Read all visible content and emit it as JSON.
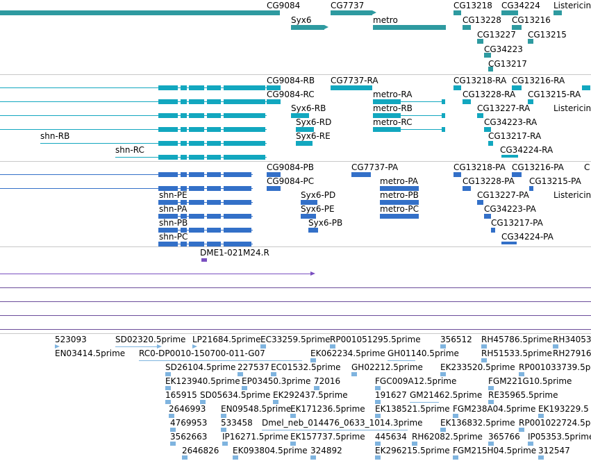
{
  "colors": {
    "gene": "#2e9aa0",
    "mrna": "#12a7bf",
    "protein": "#3370c8",
    "clone": "#7a4fc0",
    "est": "#7fb4df",
    "trace": "#6b4c9a"
  },
  "gene_track": {
    "labels": [
      "CG9084",
      "CG7737",
      "CG13218",
      "CG34224",
      "Listericin",
      "Syx6",
      "metro",
      "CG13228",
      "CG13216",
      "CG13227",
      "CG13215",
      "CG34223",
      "CG13217"
    ]
  },
  "mrna_track": {
    "labels": [
      "CG9084-RB",
      "CG7737-RA",
      "CG13218-RA",
      "CG13216-RA",
      "CG9084-RC",
      "metro-RA",
      "CG13228-RA",
      "CG13215-RA",
      "Syx6-RB",
      "metro-RB",
      "CG13227-RA",
      "Listericin-",
      "Syx6-RD",
      "metro-RC",
      "CG34223-RA",
      "Syx6-RE",
      "CG13217-RA",
      "shn-RB",
      "shn-RC",
      "CG34224-RA"
    ]
  },
  "protein_track": {
    "labels": [
      "CG9084-PB",
      "CG7737-PA",
      "CG13218-PA",
      "CG13216-PA",
      "C",
      "CG9084-PC",
      "metro-PA",
      "CG13228-PA",
      "CG13215-PA",
      "shn-PE",
      "Syx6-PD",
      "metro-PB",
      "CG13227-PA",
      "Listericin-",
      "shn-PA",
      "Syx6-PE",
      "metro-PC",
      "CG34223-PA",
      "shn-PB",
      "Syx6-PB",
      "CG13217-PA",
      "shn-PC",
      "CG34224-PA"
    ]
  },
  "clone_track": {
    "labels": [
      "DME1-021M24.R"
    ]
  },
  "est_track": {
    "labels": [
      "523093",
      "SD02320.5prime",
      "LP21684.5prime",
      "EC33259.5prime",
      "RP001051295.5prime",
      "356512",
      "RH45786.5prime",
      "RH34053",
      "EN03414.5prime",
      "RC0-DP0010-150700-011-G07",
      "EK062234.5prime",
      "GH01140.5prime",
      "RH51533.5prime",
      "RH27916",
      "SD26104.5prime",
      "227537",
      "EC01532.5prime",
      "GH02212.5prime",
      "EK233520.5prime",
      "RP001033739.5p",
      "EK123940.5prime",
      "EP03450.3prime",
      "72016",
      "FGC009A12.5prime",
      "FGM221G10.5prime",
      "165915",
      "SD05634.5prime",
      "EK292437.5prime",
      "191627",
      "GM21462.5prime",
      "RE35965.5prime",
      "2646993",
      "EN09548.5prime",
      "EK171236.5prime",
      "EK138521.5prime",
      "FGM238A04.5prime",
      "EK193229.5",
      "4769953",
      "533458",
      "Dmel_neb_014476_0633_1014.3prime",
      "EK136832.5prime",
      "RP001022724.5p",
      "3562663",
      "IP16271.5prime",
      "EK157737.5prime",
      "445634",
      "RH62082.5prime",
      "365766",
      "IP05353.5prime",
      "2646826",
      "EK093804.5prime",
      "324892",
      "EK296215.5prime",
      "FGM215H04.5prime",
      "312547"
    ]
  }
}
